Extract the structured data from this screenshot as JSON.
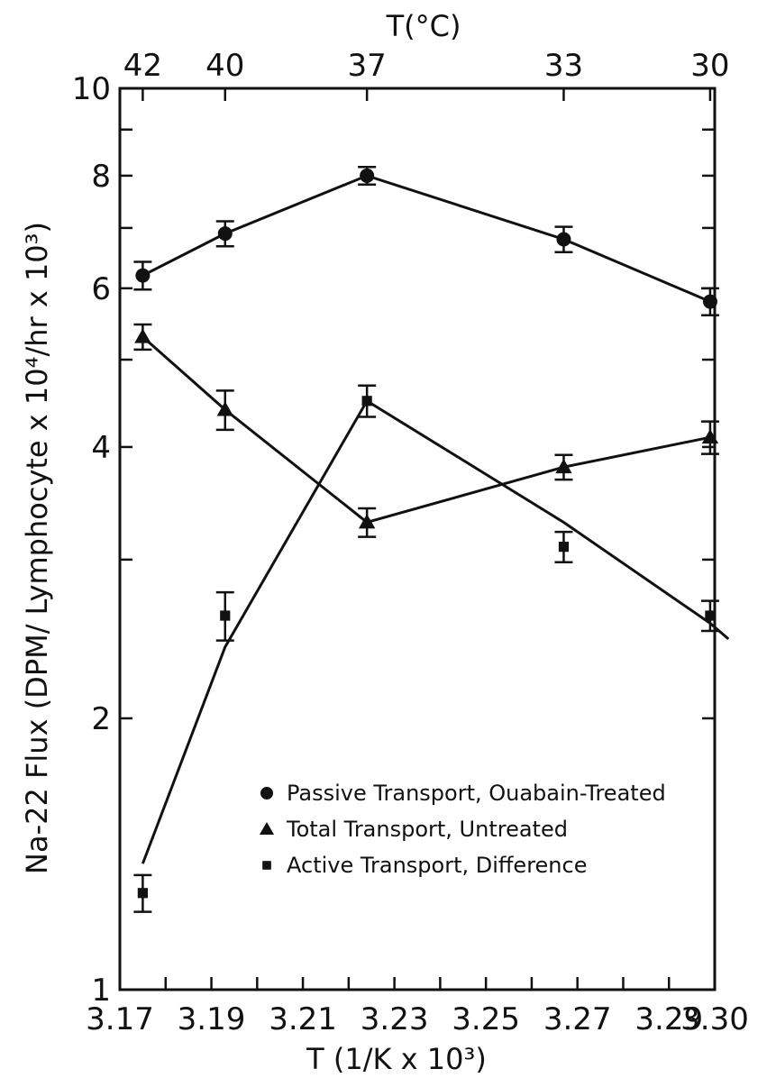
{
  "chart_data": {
    "type": "scatter",
    "xlabel": "T (1/K x 10³)",
    "ylabel": "Na-22 Flux (DPM/ Lymphocyte x 10⁴/hr x 10³)",
    "top_xlabel": "T(°C)",
    "y_scale": "log",
    "xlim": [
      3.17,
      3.3
    ],
    "ylim": [
      1,
      10
    ],
    "x_ticks": [
      "3.17",
      "3.19",
      "3.21",
      "3.23",
      "3.25",
      "3.27",
      "3.29",
      "3.30"
    ],
    "x_tick_values": [
      3.17,
      3.19,
      3.21,
      3.23,
      3.25,
      3.27,
      3.29,
      3.3
    ],
    "y_ticks": [
      "1",
      "2",
      "4",
      "6",
      "8",
      "10"
    ],
    "y_tick_values": [
      1,
      2,
      4,
      6,
      8,
      10
    ],
    "top_ticks": [
      {
        "label": "42",
        "value": 3.175
      },
      {
        "label": "40",
        "value": 3.193
      },
      {
        "label": "37",
        "value": 3.224
      },
      {
        "label": "33",
        "value": 3.267
      },
      {
        "label": "30",
        "value": 3.299
      }
    ],
    "series": [
      {
        "name": "Passive Transport, Ouabain-Treated",
        "marker": "circle",
        "x": [
          3.175,
          3.193,
          3.224,
          3.267,
          3.299
        ],
        "y": [
          6.2,
          6.9,
          8.0,
          6.8,
          5.8
        ],
        "err": [
          0.22,
          0.22,
          0.18,
          0.22,
          0.2
        ],
        "line": {
          "x": [
            3.175,
            3.193,
            3.224,
            3.267,
            3.299
          ],
          "y": [
            6.2,
            6.9,
            8.0,
            6.8,
            5.8
          ]
        }
      },
      {
        "name": "Total Transport, Untreated",
        "marker": "triangle",
        "x": [
          3.175,
          3.193,
          3.224,
          3.267,
          3.299
        ],
        "y": [
          5.3,
          4.4,
          3.3,
          3.8,
          4.1
        ],
        "err": [
          0.17,
          0.22,
          0.12,
          0.12,
          0.17
        ],
        "line": {
          "x": [
            3.175,
            3.193,
            3.224,
            3.267,
            3.299
          ],
          "y": [
            5.3,
            4.4,
            3.3,
            3.8,
            4.1
          ]
        }
      },
      {
        "name": "Active Transport, Difference",
        "marker": "square",
        "x": [
          3.175,
          3.193,
          3.224,
          3.267,
          3.299
        ],
        "y": [
          1.28,
          2.6,
          4.5,
          3.1,
          2.6
        ],
        "err": [
          0.06,
          0.16,
          0.18,
          0.12,
          0.1
        ],
        "line": {
          "x": [
            3.175,
            3.193,
            3.224,
            3.267,
            3.299,
            3.303
          ],
          "y": [
            1.38,
            2.4,
            4.5,
            3.3,
            2.55,
            2.45
          ]
        }
      }
    ],
    "legend": {
      "position": "lower-right"
    }
  }
}
